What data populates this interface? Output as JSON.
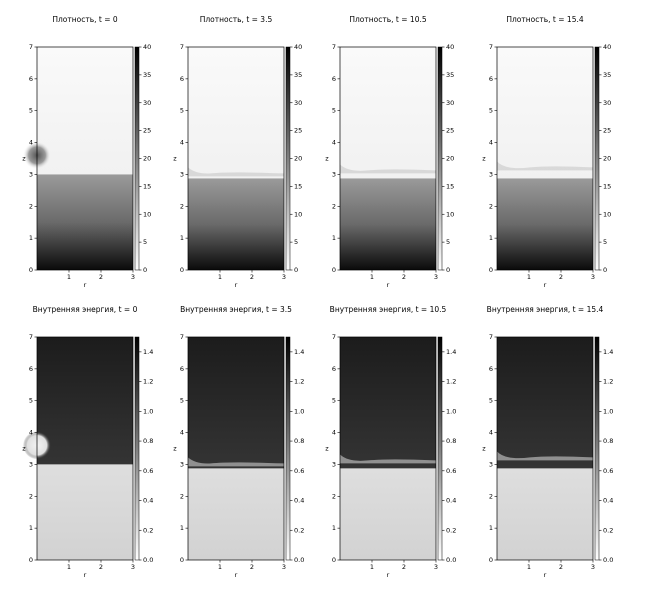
{
  "chart_data": [
    {
      "type": "heatmap",
      "title": "Плотность, t = 0",
      "xlabel": "r",
      "ylabel": "z",
      "cmap": "Greys",
      "xlim": [
        0,
        3
      ],
      "xticks": [
        1,
        2,
        3
      ],
      "ylim": [
        0,
        7
      ],
      "yticks": [
        0,
        1,
        2,
        3,
        4,
        5,
        6,
        7
      ],
      "clim": [
        0,
        40
      ],
      "cticks": [
        0,
        5,
        10,
        15,
        20,
        25,
        30,
        35,
        40
      ]
    },
    {
      "type": "heatmap",
      "title": "Плотность, t = 3.5",
      "xlabel": "r",
      "ylabel": "z",
      "cmap": "Greys",
      "xlim": [
        0,
        3
      ],
      "xticks": [
        1,
        2,
        3
      ],
      "ylim": [
        0,
        7
      ],
      "yticks": [
        0,
        1,
        2,
        3,
        4,
        5,
        6,
        7
      ],
      "clim": [
        0,
        40
      ],
      "cticks": [
        0,
        5,
        10,
        15,
        20,
        25,
        30,
        35,
        40
      ]
    },
    {
      "type": "heatmap",
      "title": "Плотность, t = 10.5",
      "xlabel": "r",
      "ylabel": "z",
      "cmap": "Greys",
      "xlim": [
        0,
        3
      ],
      "xticks": [
        1,
        2,
        3
      ],
      "ylim": [
        0,
        7
      ],
      "yticks": [
        0,
        1,
        2,
        3,
        4,
        5,
        6,
        7
      ],
      "clim": [
        0,
        40
      ],
      "cticks": [
        0,
        5,
        10,
        15,
        20,
        25,
        30,
        35,
        40
      ]
    },
    {
      "type": "heatmap",
      "title": "Плотность, t = 15.4",
      "xlabel": "r",
      "ylabel": "z",
      "cmap": "Greys",
      "xlim": [
        0,
        3
      ],
      "xticks": [
        1,
        2,
        3
      ],
      "ylim": [
        0,
        7
      ],
      "yticks": [
        0,
        1,
        2,
        3,
        4,
        5,
        6,
        7
      ],
      "clim": [
        0,
        40
      ],
      "cticks": [
        0,
        5,
        10,
        15,
        20,
        25,
        30,
        35,
        40
      ]
    },
    {
      "type": "heatmap",
      "title": "Внутренняя энергия, t = 0",
      "xlabel": "r",
      "ylabel": "z",
      "cmap": "Greys",
      "xlim": [
        0,
        3
      ],
      "xticks": [
        1,
        2,
        3
      ],
      "ylim": [
        0,
        7
      ],
      "yticks": [
        0,
        1,
        2,
        3,
        4,
        5,
        6,
        7
      ],
      "clim": [
        0,
        1.5
      ],
      "cticks": [
        {
          "value": 0,
          "label": "0.0"
        },
        0.2,
        0.4,
        0.6,
        0.8,
        {
          "value": 1,
          "label": "1.0"
        },
        1.2,
        1.4
      ]
    },
    {
      "type": "heatmap",
      "title": "Внутренняя энергия, t = 3.5",
      "xlabel": "r",
      "ylabel": "z",
      "cmap": "Greys",
      "xlim": [
        0,
        3
      ],
      "xticks": [
        1,
        2,
        3
      ],
      "ylim": [
        0,
        7
      ],
      "yticks": [
        0,
        1,
        2,
        3,
        4,
        5,
        6,
        7
      ],
      "clim": [
        0,
        1.5
      ],
      "cticks": [
        {
          "value": 0,
          "label": "0.0"
        },
        0.2,
        0.4,
        0.6,
        0.8,
        {
          "value": 1,
          "label": "1.0"
        },
        1.2,
        1.4
      ]
    },
    {
      "type": "heatmap",
      "title": "Внутренняя энергия, t = 10.5",
      "xlabel": "r",
      "ylabel": "z",
      "cmap": "Greys",
      "xlim": [
        0,
        3
      ],
      "xticks": [
        1,
        2,
        3
      ],
      "ylim": [
        0,
        7
      ],
      "yticks": [
        0,
        1,
        2,
        3,
        4,
        5,
        6,
        7
      ],
      "clim": [
        0,
        1.5
      ],
      "cticks": [
        {
          "value": 0,
          "label": "0.0"
        },
        0.2,
        0.4,
        0.6,
        0.8,
        {
          "value": 1,
          "label": "1.0"
        },
        1.2,
        1.4
      ]
    },
    {
      "type": "heatmap",
      "title": "Внутренняя энергия, t = 15.4",
      "xlabel": "r",
      "ylabel": "z",
      "cmap": "Greys",
      "xlim": [
        0,
        3
      ],
      "xticks": [
        1,
        2,
        3
      ],
      "ylim": [
        0,
        7
      ],
      "yticks": [
        0,
        1,
        2,
        3,
        4,
        5,
        6,
        7
      ],
      "clim": [
        0,
        1.5
      ],
      "cticks": [
        {
          "value": 0,
          "label": "0.0"
        },
        0.2,
        0.4,
        0.6,
        0.8,
        {
          "value": 1,
          "label": "1.0"
        },
        1.2,
        1.4
      ]
    }
  ]
}
